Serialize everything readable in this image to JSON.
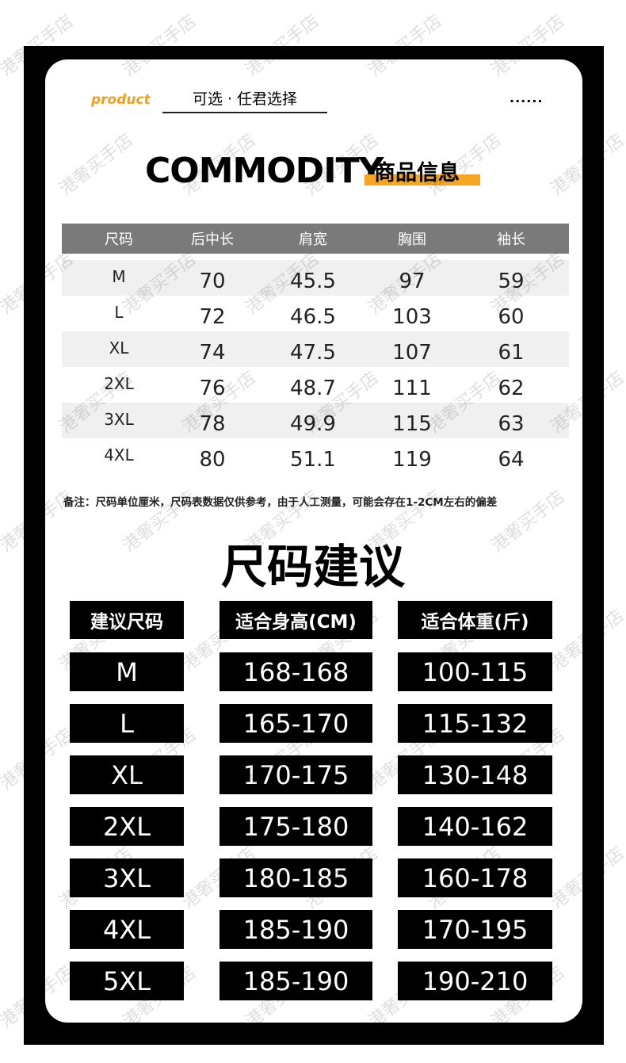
{
  "header": {
    "brand": "product",
    "tagline": "可选 · 任君选择",
    "dots": "......",
    "title": "COMMODITY",
    "subtitle": "商品信息"
  },
  "measure_table": {
    "columns": [
      "尺码",
      "后中长",
      "肩宽",
      "胸围",
      "袖长"
    ],
    "rows": [
      [
        "M",
        "70",
        "45.5",
        "97",
        "59"
      ],
      [
        "L",
        "72",
        "46.5",
        "103",
        "60"
      ],
      [
        "XL",
        "74",
        "47.5",
        "107",
        "61"
      ],
      [
        "2XL",
        "76",
        "48.7",
        "111",
        "62"
      ],
      [
        "3XL",
        "78",
        "49.9",
        "115",
        "63"
      ],
      [
        "4XL",
        "80",
        "51.1",
        "119",
        "64"
      ]
    ]
  },
  "note": "备注：尺码单位厘米，尺码表数据仅供参考，由于人工测量，可能会存在1-2CM左右的偏差",
  "advice": {
    "title": "尺码建议",
    "columns": [
      "建议尺码",
      "适合身高(CM)",
      "适合体重(斤)"
    ],
    "rows": [
      [
        "M",
        "168-168",
        "100-115"
      ],
      [
        "L",
        "165-170",
        "115-132"
      ],
      [
        "XL",
        "170-175",
        "130-148"
      ],
      [
        "2XL",
        "175-180",
        "140-162"
      ],
      [
        "3XL",
        "180-185",
        "160-178"
      ],
      [
        "4XL",
        "185-190",
        "170-195"
      ],
      [
        "5XL",
        "185-190",
        "190-210"
      ]
    ]
  },
  "watermark": "港奢买手店"
}
